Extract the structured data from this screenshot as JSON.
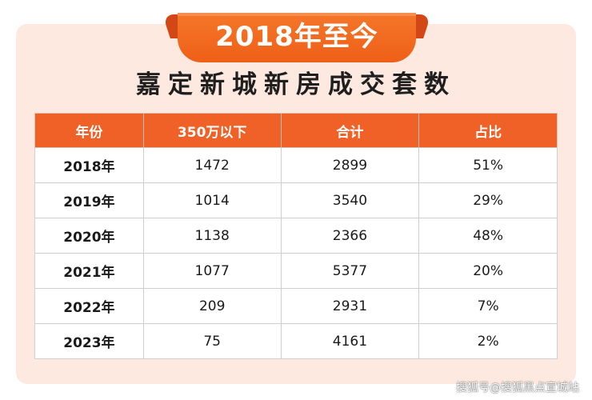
{
  "ribbon_title": "2018年至今",
  "headline": "嘉定新城新房成交套数",
  "watermark": "搜狐号@搜狐黑点宣城站",
  "colors": {
    "accent": "#ef6126",
    "card_background": "#fde9df",
    "ribbon_dark": "#d34716"
  },
  "chart_data": {
    "type": "table",
    "title": "嘉定新城新房成交套数",
    "subtitle": "2018年至今",
    "columns": [
      "年份",
      "350万以下",
      "合计",
      "占比"
    ],
    "rows": [
      [
        "2018年",
        "1472",
        "2899",
        "51%"
      ],
      [
        "2019年",
        "1014",
        "3540",
        "29%"
      ],
      [
        "2020年",
        "1138",
        "2366",
        "48%"
      ],
      [
        "2021年",
        "1077",
        "5377",
        "20%"
      ],
      [
        "2022年",
        "209",
        "2931",
        "7%"
      ],
      [
        "2023年",
        "75",
        "4161",
        "2%"
      ]
    ]
  }
}
